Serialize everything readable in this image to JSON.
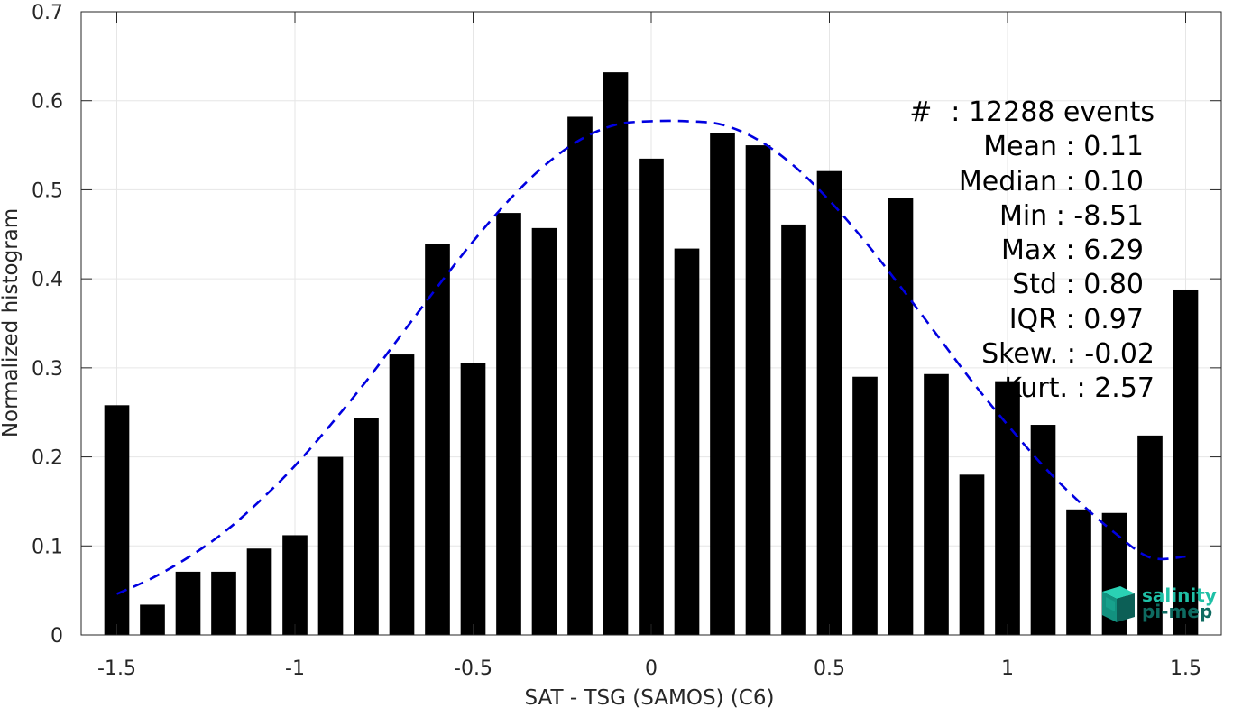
{
  "chart_data": {
    "type": "bar",
    "title": "",
    "xlabel": "SAT - TSG (SAMOS) (C6)",
    "ylabel": "Normalized histogram",
    "xlim": [
      -1.6,
      1.6
    ],
    "ylim": [
      0,
      0.7
    ],
    "xticks": [
      -1.5,
      -1,
      -0.5,
      0,
      0.5,
      1,
      1.5
    ],
    "xtick_labels": [
      "-1.5",
      "-1",
      "-0.5",
      "0",
      "0.5",
      "1",
      "1.5"
    ],
    "yticks": [
      0,
      0.1,
      0.2,
      0.3,
      0.4,
      0.5,
      0.6,
      0.7
    ],
    "ytick_labels": [
      "0",
      "0.1",
      "0.2",
      "0.3",
      "0.4",
      "0.5",
      "0.6",
      "0.7"
    ],
    "grid": true,
    "bar_color": "#000000",
    "bin_width": 0.1,
    "bins": {
      "x": [
        -1.5,
        -1.4,
        -1.3,
        -1.2,
        -1.1,
        -1.0,
        -0.9,
        -0.8,
        -0.7,
        -0.6,
        -0.5,
        -0.4,
        -0.3,
        -0.2,
        -0.1,
        0.0,
        0.1,
        0.2,
        0.3,
        0.4,
        0.5,
        0.6,
        0.7,
        0.8,
        0.9,
        1.0,
        1.1,
        1.2,
        1.3,
        1.4,
        1.5
      ],
      "values": [
        0.258,
        0.034,
        0.071,
        0.071,
        0.097,
        0.112,
        0.2,
        0.244,
        0.315,
        0.439,
        0.305,
        0.474,
        0.457,
        0.582,
        0.632,
        0.535,
        0.434,
        0.564,
        0.55,
        0.461,
        0.521,
        0.29,
        0.491,
        0.293,
        0.18,
        0.285,
        0.236,
        0.141,
        0.137,
        0.224,
        0.388
      ]
    },
    "fit_curve": {
      "type": "line",
      "style": "dashed",
      "color": "#0000e0",
      "x": [
        -1.5,
        -1.4,
        -1.3,
        -1.2,
        -1.1,
        -1.0,
        -0.9,
        -0.8,
        -0.7,
        -0.6,
        -0.5,
        -0.4,
        -0.3,
        -0.2,
        -0.1,
        0.0,
        0.1,
        0.2,
        0.3,
        0.4,
        0.5,
        0.6,
        0.7,
        0.8,
        0.9,
        1.0,
        1.1,
        1.2,
        1.3,
        1.4,
        1.5
      ],
      "y": [
        0.046,
        0.064,
        0.087,
        0.115,
        0.15,
        0.19,
        0.236,
        0.285,
        0.338,
        0.391,
        0.442,
        0.488,
        0.527,
        0.556,
        0.573,
        0.577,
        0.577,
        0.573,
        0.556,
        0.527,
        0.488,
        0.442,
        0.391,
        0.338,
        0.285,
        0.236,
        0.19,
        0.15,
        0.115,
        0.087,
        0.088
      ]
    },
    "legend": "none"
  },
  "stats": {
    "hash": "#",
    "events": ": 12288 events",
    "mean": "Mean : 0.11",
    "median": "Median : 0.10",
    "min": "Min : -8.51",
    "max": "Max : 6.29",
    "std": "Std : 0.80",
    "iqr": "IQR : 0.97",
    "skew": "Skew. : -0.02",
    "kurt": "Kurt. : 2.57"
  },
  "logo": {
    "line1": "salinity",
    "line2": "pi-mep",
    "color_light": "#1fc0a6",
    "color_dark": "#0e6b61"
  }
}
